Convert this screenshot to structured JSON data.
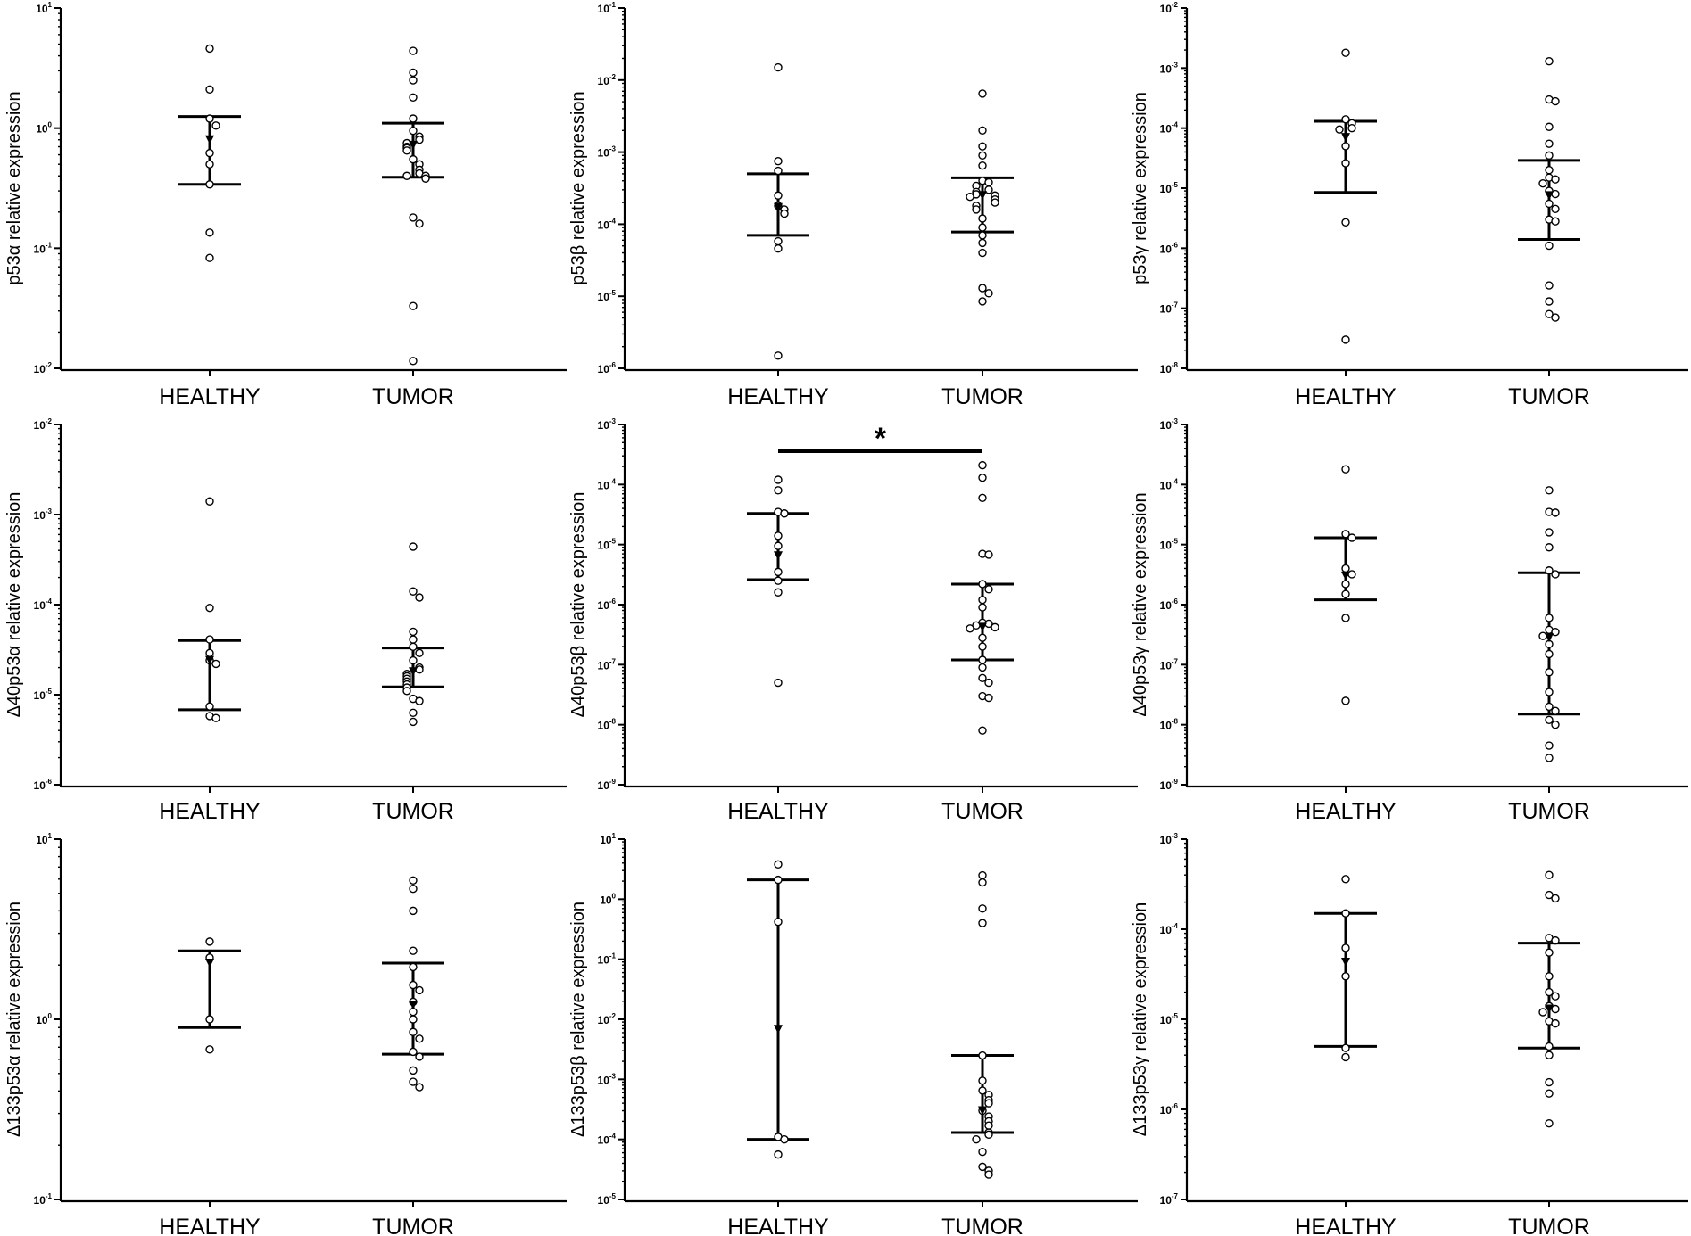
{
  "figure_title": "",
  "chart_data": [
    {
      "type": "scatter",
      "title": "",
      "ylabel": "p53α relative expression",
      "xlabel": "",
      "yscale": "log",
      "ylim_exp": [
        -2,
        1
      ],
      "categories": [
        "HEALTHY",
        "TUMOR"
      ],
      "groups": [
        {
          "name": "HEALTHY",
          "points": [
            4.6,
            2.1,
            1.2,
            1.05,
            0.62,
            0.5,
            0.34,
            0.135,
            0.083
          ],
          "upper": 1.25,
          "lower": 0.34,
          "median": 0.8
        },
        {
          "name": "TUMOR",
          "points": [
            4.4,
            2.9,
            2.5,
            1.8,
            1.2,
            0.95,
            0.85,
            0.8,
            0.75,
            0.7,
            0.68,
            0.65,
            0.55,
            0.5,
            0.45,
            0.42,
            0.4,
            0.4,
            0.38,
            0.18,
            0.16,
            0.033,
            0.0115
          ],
          "upper": 1.1,
          "lower": 0.39,
          "median": 0.72
        }
      ],
      "significance": null
    },
    {
      "type": "scatter",
      "title": "",
      "ylabel": "p53β relative expression",
      "xlabel": "",
      "yscale": "log",
      "ylim_exp": [
        -6,
        -1
      ],
      "categories": [
        "HEALTHY",
        "TUMOR"
      ],
      "groups": [
        {
          "name": "HEALTHY",
          "points": [
            0.015,
            0.00075,
            0.00055,
            0.00025,
            0.00018,
            0.00016,
            0.00014,
            5.8e-05,
            4.6e-05,
            1.5e-06
          ],
          "upper": 0.0005,
          "lower": 7e-05,
          "median": 0.00017
        },
        {
          "name": "TUMOR",
          "points": [
            0.0065,
            0.002,
            0.0012,
            0.0009,
            0.00065,
            0.0004,
            0.00038,
            0.00034,
            0.0003,
            0.00028,
            0.00026,
            0.00025,
            0.00024,
            0.00022,
            0.0002,
            0.00018,
            0.00016,
            0.00012,
            9e-05,
            7e-05,
            5.5e-05,
            4e-05,
            1.3e-05,
            1.1e-05,
            8.5e-06
          ],
          "upper": 0.00044,
          "lower": 7.8e-05,
          "median": 0.00025
        }
      ],
      "significance": null
    },
    {
      "type": "scatter",
      "title": "",
      "ylabel": "p53γ relative expression",
      "xlabel": "",
      "yscale": "log",
      "ylim_exp": [
        -8,
        -2
      ],
      "categories": [
        "HEALTHY",
        "TUMOR"
      ],
      "groups": [
        {
          "name": "HEALTHY",
          "points": [
            0.0018,
            0.00014,
            0.00012,
            0.0001,
            9.5e-05,
            5e-05,
            2.6e-05,
            2.7e-06,
            3e-08
          ],
          "upper": 0.00013,
          "lower": 8.5e-06,
          "median": 7e-05
        },
        {
          "name": "TUMOR",
          "points": [
            0.0013,
            0.0003,
            0.00028,
            0.000105,
            5.5e-05,
            3.5e-05,
            2e-05,
            1.5e-05,
            1.4e-05,
            1.2e-05,
            9e-06,
            8e-06,
            5.5e-06,
            4.5e-06,
            3e-06,
            2.8e-06,
            1.1e-06,
            2.4e-07,
            1.3e-07,
            8e-08,
            7e-08
          ],
          "upper": 2.9e-05,
          "lower": 1.4e-06,
          "median": 7.5e-06
        }
      ],
      "significance": null
    },
    {
      "type": "scatter",
      "title": "",
      "ylabel": "Δ40p53α relative expression",
      "xlabel": "",
      "yscale": "log",
      "ylim_exp": [
        -6,
        -2
      ],
      "categories": [
        "HEALTHY",
        "TUMOR"
      ],
      "groups": [
        {
          "name": "HEALTHY",
          "points": [
            0.0014,
            9.2e-05,
            4.1e-05,
            2.9e-05,
            2.4e-05,
            2.2e-05,
            7.4e-06,
            5.8e-06,
            5.5e-06
          ],
          "upper": 4e-05,
          "lower": 6.8e-06,
          "median": 2.4e-05
        },
        {
          "name": "TUMOR",
          "points": [
            0.00044,
            0.00014,
            0.00012,
            5e-05,
            4.1e-05,
            3.4e-05,
            2.9e-05,
            2.4e-05,
            2e-05,
            1.9e-05,
            1.7e-05,
            1.6e-05,
            1.5e-05,
            1.4e-05,
            1.3e-05,
            1.2e-05,
            1.1e-05,
            9e-06,
            8.5e-06,
            6.3e-06,
            5e-06
          ],
          "upper": 3.3e-05,
          "lower": 1.22e-05,
          "median": 1.8e-05
        }
      ],
      "significance": null
    },
    {
      "type": "scatter",
      "title": "",
      "ylabel": "Δ40p53β relative expression",
      "xlabel": "",
      "yscale": "log",
      "ylim_exp": [
        -9,
        -3
      ],
      "categories": [
        "HEALTHY",
        "TUMOR"
      ],
      "groups": [
        {
          "name": "HEALTHY",
          "points": [
            0.00012,
            8e-05,
            3.5e-05,
            3.3e-05,
            1.4e-05,
            9.5e-06,
            3.5e-06,
            2.5e-06,
            1.6e-06,
            5e-08
          ],
          "upper": 3.3e-05,
          "lower": 2.6e-06,
          "median": 6.5e-06
        },
        {
          "name": "TUMOR",
          "points": [
            0.00021,
            0.00013,
            6e-05,
            7e-06,
            6.8e-06,
            2.2e-06,
            1.8e-06,
            1.2e-06,
            9e-07,
            5e-07,
            4.8e-07,
            4.5e-07,
            4.2e-07,
            4e-07,
            2.8e-07,
            2e-07,
            1.2e-07,
            9e-08,
            6e-08,
            5e-08,
            3e-08,
            2.8e-08,
            8e-09
          ],
          "upper": 2.2e-06,
          "lower": 1.2e-07,
          "median": 4.2e-07
        }
      ],
      "significance": {
        "between": [
          "HEALTHY",
          "TUMOR"
        ],
        "label": "*"
      }
    },
    {
      "type": "scatter",
      "title": "",
      "ylabel": "Δ40p53γ relative expression",
      "xlabel": "",
      "yscale": "log",
      "ylim_exp": [
        -9,
        -3
      ],
      "categories": [
        "HEALTHY",
        "TUMOR"
      ],
      "groups": [
        {
          "name": "HEALTHY",
          "points": [
            0.00018,
            1.5e-05,
            1.3e-05,
            4e-06,
            3.2e-06,
            2.2e-06,
            1.5e-06,
            6e-07,
            2.5e-08
          ],
          "upper": 1.3e-05,
          "lower": 1.2e-06,
          "median": 3e-06
        },
        {
          "name": "TUMOR",
          "points": [
            8e-05,
            3.5e-05,
            3.4e-05,
            1.6e-05,
            9e-06,
            3.7e-06,
            3.2e-06,
            6e-07,
            3.8e-07,
            3.5e-07,
            3e-07,
            2.2e-07,
            1.5e-07,
            7.5e-08,
            3.5e-08,
            2e-08,
            1.7e-08,
            1.2e-08,
            1e-08,
            4.5e-09,
            2.8e-09
          ],
          "upper": 3.4e-06,
          "lower": 1.5e-08,
          "median": 2.8e-07
        }
      ],
      "significance": null
    },
    {
      "type": "scatter",
      "title": "",
      "ylabel": "Δ133p53α relative expression",
      "xlabel": "",
      "yscale": "log",
      "ylim_exp": [
        -1,
        1
      ],
      "categories": [
        "HEALTHY",
        "TUMOR"
      ],
      "groups": [
        {
          "name": "HEALTHY",
          "points": [
            2.7,
            2.2,
            1.0,
            0.68
          ],
          "upper": 2.4,
          "lower": 0.9,
          "median": 2.05
        },
        {
          "name": "TUMOR",
          "points": [
            5.9,
            5.3,
            4.0,
            2.4,
            1.95,
            1.55,
            1.45,
            1.25,
            1.1,
            1.0,
            0.85,
            0.78,
            0.66,
            0.62,
            0.52,
            0.45,
            0.42
          ],
          "upper": 2.05,
          "lower": 0.64,
          "median": 1.2
        }
      ],
      "significance": null
    },
    {
      "type": "scatter",
      "title": "",
      "ylabel": "Δ133p53β relative expression",
      "xlabel": "",
      "yscale": "log",
      "ylim_exp": [
        -5,
        1
      ],
      "categories": [
        "HEALTHY",
        "TUMOR"
      ],
      "groups": [
        {
          "name": "HEALTHY",
          "points": [
            3.8,
            2.1,
            0.42,
            0.00011,
            0.0001,
            5.6e-05
          ],
          "upper": 2.1,
          "lower": 0.0001,
          "median": 0.0068
        },
        {
          "name": "TUMOR",
          "points": [
            2.5,
            1.9,
            0.7,
            0.4,
            0.0025,
            0.00095,
            0.00065,
            0.00055,
            0.00045,
            0.0004,
            0.0003,
            0.00024,
            0.0002,
            0.00017,
            0.00013,
            0.00012,
            0.0001,
            6.2e-05,
            3.5e-05,
            3e-05,
            2.6e-05
          ],
          "upper": 0.0025,
          "lower": 0.00013,
          "median": 0.0003
        }
      ],
      "significance": null
    },
    {
      "type": "scatter",
      "title": "",
      "ylabel": "Δ133p53γ relative expression",
      "xlabel": "",
      "yscale": "log",
      "ylim_exp": [
        -7,
        -3
      ],
      "categories": [
        "HEALTHY",
        "TUMOR"
      ],
      "groups": [
        {
          "name": "HEALTHY",
          "points": [
            0.00036,
            0.00015,
            6.2e-05,
            3e-05,
            4.8e-06,
            3.8e-06
          ],
          "upper": 0.00015,
          "lower": 5e-06,
          "median": 4.3e-05
        },
        {
          "name": "TUMOR",
          "points": [
            0.0004,
            0.00024,
            0.00022,
            8e-05,
            7.5e-05,
            5.5e-05,
            3e-05,
            2e-05,
            1.8e-05,
            1.4e-05,
            1.3e-05,
            1.2e-05,
            9.5e-06,
            9e-06,
            5e-06,
            4e-06,
            2e-06,
            1.5e-06,
            7e-07
          ],
          "upper": 7e-05,
          "lower": 4.8e-06,
          "median": 1.3e-05
        }
      ],
      "significance": null
    }
  ]
}
